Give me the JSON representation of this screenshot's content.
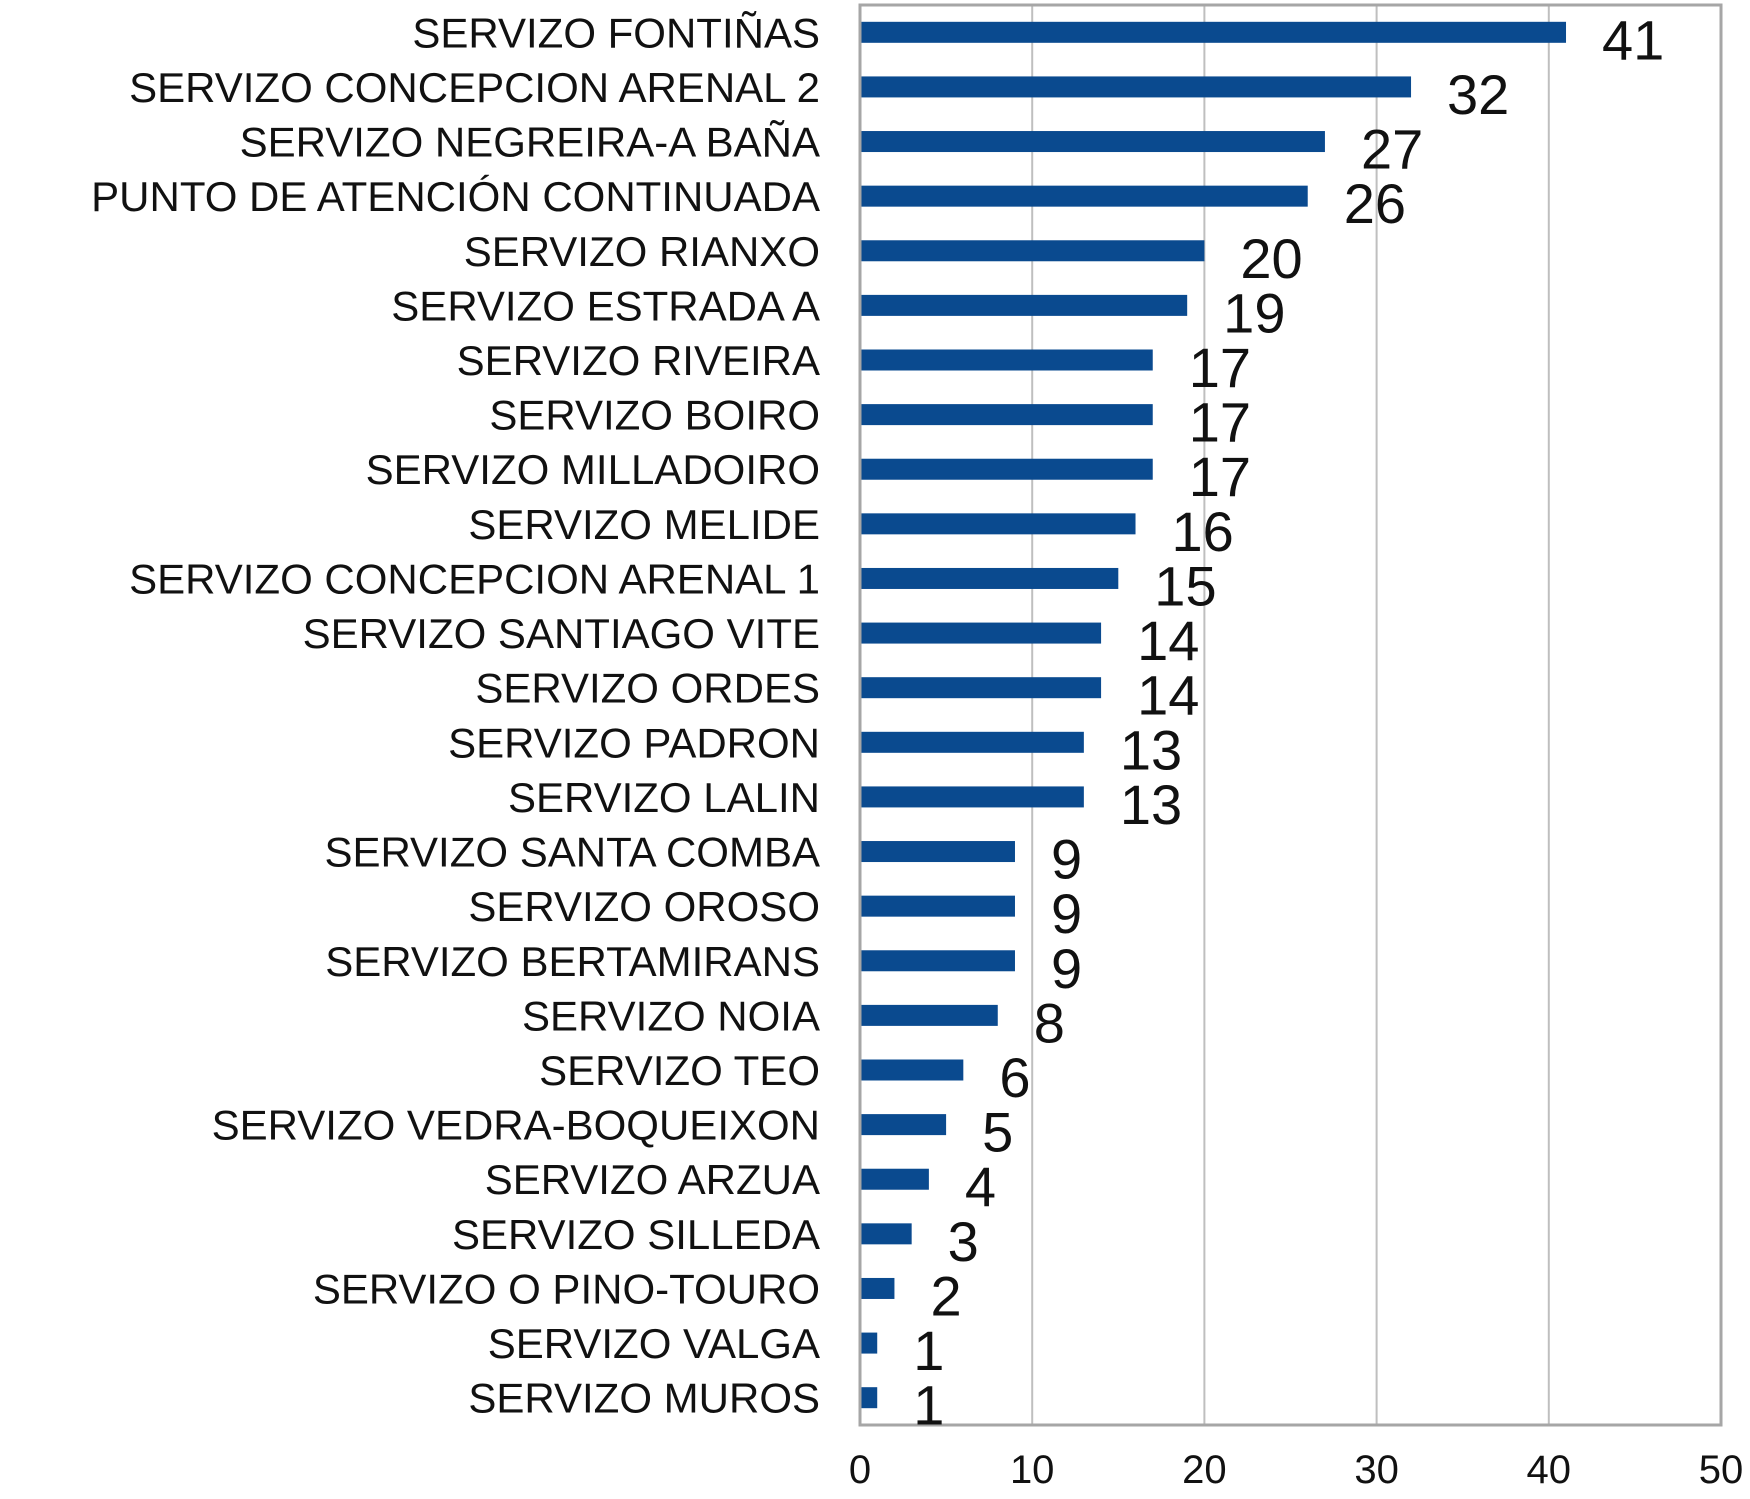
{
  "chart_data": {
    "type": "bar",
    "orientation": "horizontal",
    "title": "",
    "xlabel": "",
    "ylabel": "",
    "categories": [
      "SERVIZO FONTIÑAS",
      "SERVIZO CONCEPCION ARENAL 2",
      "SERVIZO NEGREIRA-A BAÑA",
      "PUNTO DE ATENCIÓN CONTINUADA",
      "SERVIZO RIANXO",
      "SERVIZO ESTRADA A",
      "SERVIZO RIVEIRA",
      "SERVIZO BOIRO",
      "SERVIZO MILLADOIRO",
      "SERVIZO MELIDE",
      "SERVIZO CONCEPCION ARENAL 1",
      "SERVIZO SANTIAGO VITE",
      "SERVIZO ORDES",
      "SERVIZO PADRON",
      "SERVIZO LALIN",
      "SERVIZO SANTA COMBA",
      "SERVIZO OROSO",
      "SERVIZO BERTAMIRANS",
      "SERVIZO NOIA",
      "SERVIZO TEO",
      "SERVIZO VEDRA-BOQUEIXON",
      "SERVIZO ARZUA",
      "SERVIZO SILLEDA",
      "SERVIZO O PINO-TOURO",
      "SERVIZO VALGA",
      "SERVIZO MUROS"
    ],
    "values": [
      41,
      32,
      27,
      26,
      20,
      19,
      17,
      17,
      17,
      16,
      15,
      14,
      14,
      13,
      13,
      9,
      9,
      9,
      8,
      6,
      5,
      4,
      3,
      2,
      1,
      1
    ],
    "xlim": [
      0,
      50
    ],
    "xticks": [
      0,
      10,
      20,
      30,
      40,
      50
    ],
    "grid": "vertical",
    "legend": "none",
    "bar_color": "#0a4a8f",
    "grid_color": "#bfbfbf",
    "axis_color": "#a6a6a6"
  }
}
